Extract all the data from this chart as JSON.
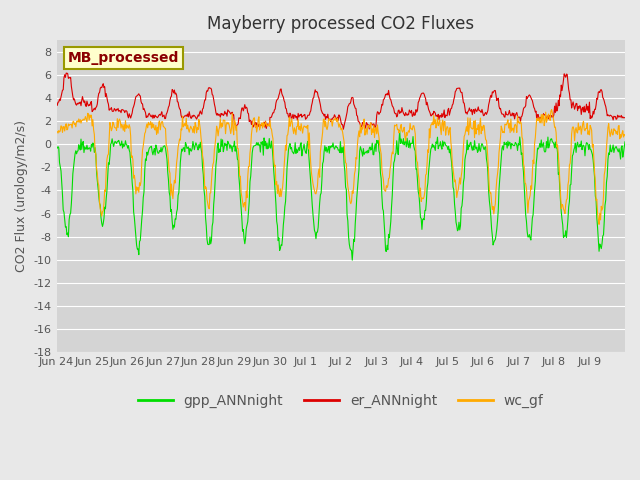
{
  "title": "Mayberry processed CO2 Fluxes",
  "ylabel": "CO2 Flux (urology/m2/s)",
  "ylim": [
    -18,
    9
  ],
  "yticks": [
    -18,
    -16,
    -14,
    -12,
    -10,
    -8,
    -6,
    -4,
    -2,
    0,
    2,
    4,
    6,
    8
  ],
  "bg_color": "#e8e8e8",
  "plot_bg_color": "#d4d4d4",
  "legend_label": "MB_processed",
  "legend_bg": "#ffffcc",
  "legend_border": "#999900",
  "legend_text_color": "#8b0000",
  "line_colors": {
    "gpp": "#00dd00",
    "er": "#dd0000",
    "wc": "#ffaa00"
  },
  "legend_entries": [
    "gpp_ANNnight",
    "er_ANNnight",
    "wc_gf"
  ],
  "xtick_labels": [
    "Jun 24",
    "Jun 25",
    "Jun 26",
    "Jun 27",
    "Jun 28",
    "Jun 29",
    "Jun 30",
    "Jul 1",
    "Jul 2",
    "Jul 3",
    "Jul 4",
    "Jul 5",
    "Jul 6",
    "Jul 7",
    "Jul 8",
    "Jul 9"
  ],
  "n_days": 16,
  "points_per_day": 48,
  "seed": 42
}
